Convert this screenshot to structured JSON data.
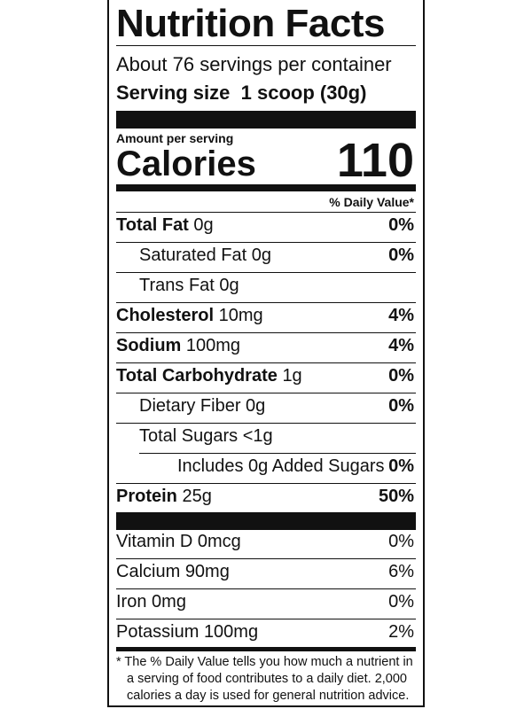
{
  "header": {
    "title": "Nutrition Facts",
    "servings": "About 76 servings per container",
    "serving_size_label": "Serving size",
    "serving_size_value": "1 scoop (30g)"
  },
  "calories": {
    "amount_label": "Amount per serving",
    "label": "Calories",
    "value": 110
  },
  "daily_value_header": "% Daily Value*",
  "nutrients": [
    {
      "name": "Total Fat",
      "amount": "0g",
      "dv": "0%"
    },
    {
      "name": "Saturated Fat",
      "amount": "0g",
      "dv": "0%"
    },
    {
      "name": "Trans Fat",
      "amount": "0g"
    },
    {
      "name": "Cholesterol",
      "amount": "10mg",
      "dv": "4%"
    },
    {
      "name": "Sodium",
      "amount": "100mg",
      "dv": "4%"
    },
    {
      "name": "Total Carbohydrate",
      "amount": "1g",
      "dv": "0%"
    },
    {
      "name": "Dietary Fiber",
      "amount": "0g",
      "dv": "0%"
    },
    {
      "name": "Total Sugars",
      "amount": "<1g"
    },
    {
      "name": "Includes 0g Added Sugars",
      "dv": "0%"
    },
    {
      "name": "Protein",
      "amount": "25g",
      "dv": "50%"
    }
  ],
  "vitamins": [
    {
      "name": "Vitamin D",
      "amount": "0mcg",
      "dv": "0%"
    },
    {
      "name": "Calcium",
      "amount": "90mg",
      "dv": "6%"
    },
    {
      "name": "Iron",
      "amount": "0mg",
      "dv": "0%"
    },
    {
      "name": "Potassium",
      "amount": "100mg",
      "dv": "2%"
    }
  ],
  "footnote": [
    "* The % Daily Value tells you how much a nutrient in",
    "a serving of food contributes to a daily diet. 2,000",
    "calories a day is used for general nutrition advice."
  ]
}
